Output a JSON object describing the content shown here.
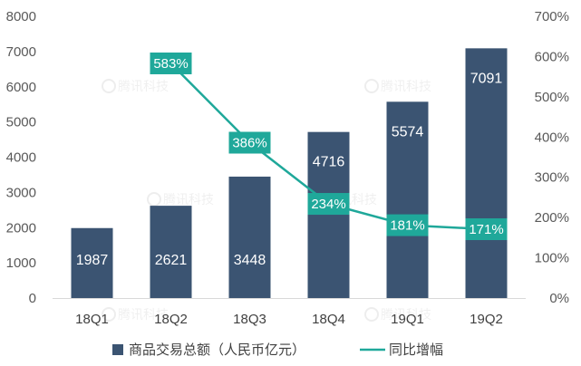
{
  "chart_data": {
    "type": "bar",
    "categories": [
      "18Q1",
      "18Q2",
      "18Q3",
      "18Q4",
      "19Q1",
      "19Q2"
    ],
    "series": [
      {
        "name": "商品交易总额（人民币亿元）",
        "type": "bar",
        "axis": "left",
        "values": [
          1987,
          2621,
          3448,
          4716,
          5574,
          7091
        ],
        "labels": [
          "1987",
          "2621",
          "3448",
          "4716",
          "5574",
          "7091"
        ]
      },
      {
        "name": "同比增幅",
        "type": "line",
        "axis": "right",
        "values": [
          null,
          583,
          386,
          234,
          181,
          171
        ],
        "labels": [
          "",
          "583%",
          "386%",
          "234%",
          "181%",
          "171%"
        ]
      }
    ],
    "ylim": [
      0,
      8000
    ],
    "y_ticks": [
      "0",
      "1000",
      "2000",
      "3000",
      "4000",
      "5000",
      "6000",
      "7000",
      "8000"
    ],
    "y2lim": [
      0,
      700
    ],
    "y2_ticks": [
      "0%",
      "100%",
      "200%",
      "300%",
      "400%",
      "500%",
      "600%",
      "700%"
    ],
    "title": "",
    "xlabel": "",
    "ylabel": "",
    "y2label": "",
    "grid": false,
    "legend": "bottom",
    "colors": {
      "bar": "#3b5472",
      "line": "#1fa89a",
      "label_box": "#1fa89a",
      "axis_text": "#595959"
    }
  },
  "watermark": "腾讯科技",
  "watermark_icon": "tencent-tech-logo"
}
